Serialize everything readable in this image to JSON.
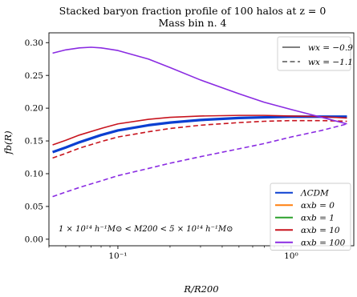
{
  "chart_data": {
    "type": "line",
    "title": "Stacked baryon fraction profile of 100 halos at z = 0",
    "subtitle": "Mass bin n. 4",
    "xlabel": "R/R200",
    "ylabel": "fb(R)",
    "xscale": "log",
    "xlim": [
      0.04,
      2.3
    ],
    "ylim": [
      -0.01,
      0.315
    ],
    "x_ticks": [
      {
        "value": 0.1,
        "label": "10⁻¹"
      },
      {
        "value": 1,
        "label": "10⁰"
      }
    ],
    "y_ticks": [
      {
        "value": 0.0,
        "label": "0.00"
      },
      {
        "value": 0.05,
        "label": "0.05"
      },
      {
        "value": 0.1,
        "label": "0.10"
      },
      {
        "value": 0.15,
        "label": "0.15"
      },
      {
        "value": 0.2,
        "label": "0.20"
      },
      {
        "value": 0.25,
        "label": "0.25"
      },
      {
        "value": 0.3,
        "label": "0.30"
      }
    ],
    "grid": false,
    "annotation": "1 × 10¹⁴ h⁻¹M⊙ < M200 < 5 × 10¹⁴ h⁻¹M⊙",
    "legend_linestyle": {
      "placement": "top-right",
      "entries": [
        {
          "label": "wx = −0.9",
          "dash": "solid"
        },
        {
          "label": "wx = −1.1",
          "dash": "dashed"
        }
      ]
    },
    "legend_models": {
      "placement": "lower-right",
      "entries": [
        {
          "label": "ΛCDM",
          "color": "#0a3fd1"
        },
        {
          "label": "αxb = 0",
          "color": "#ff7f0e"
        },
        {
          "label": "αxb = 1",
          "color": "#2ca02c"
        },
        {
          "label": "αxb = 10",
          "color": "#c8141e"
        },
        {
          "label": "αxb = 100",
          "color": "#8a2be2"
        }
      ]
    },
    "series": [
      {
        "name": "ΛCDM",
        "color": "#0a3fd1",
        "dash": "solid",
        "width": 3.2,
        "x": [
          0.042,
          0.05,
          0.06,
          0.08,
          0.1,
          0.15,
          0.2,
          0.3,
          0.5,
          0.7,
          1.0,
          1.5,
          2.1
        ],
        "y": [
          0.133,
          0.14,
          0.148,
          0.159,
          0.166,
          0.174,
          0.178,
          0.182,
          0.185,
          0.186,
          0.187,
          0.187,
          0.187
        ]
      },
      {
        "name": "αxb = 10",
        "color": "#c8141e",
        "dash": "solid",
        "width": 1.6,
        "x": [
          0.042,
          0.05,
          0.06,
          0.08,
          0.1,
          0.15,
          0.2,
          0.3,
          0.5,
          0.7,
          1.0,
          1.5,
          2.1
        ],
        "y": [
          0.144,
          0.151,
          0.159,
          0.169,
          0.176,
          0.183,
          0.186,
          0.188,
          0.189,
          0.189,
          0.188,
          0.187,
          0.185
        ]
      },
      {
        "name": "αxb = 10",
        "color": "#c8141e",
        "dash": "dashed",
        "width": 1.6,
        "x": [
          0.042,
          0.05,
          0.06,
          0.08,
          0.1,
          0.15,
          0.2,
          0.3,
          0.5,
          0.7,
          1.0,
          1.5,
          2.1
        ],
        "y": [
          0.124,
          0.131,
          0.139,
          0.149,
          0.156,
          0.164,
          0.169,
          0.174,
          0.178,
          0.18,
          0.181,
          0.181,
          0.18
        ]
      },
      {
        "name": "αxb = 100",
        "color": "#8a2be2",
        "dash": "solid",
        "width": 1.6,
        "x": [
          0.042,
          0.05,
          0.06,
          0.07,
          0.08,
          0.1,
          0.15,
          0.2,
          0.3,
          0.5,
          0.7,
          1.0,
          1.5,
          2.1
        ],
        "y": [
          0.284,
          0.289,
          0.292,
          0.293,
          0.292,
          0.288,
          0.275,
          0.262,
          0.243,
          0.222,
          0.209,
          0.198,
          0.186,
          0.176
        ]
      },
      {
        "name": "αxb = 100",
        "color": "#8a2be2",
        "dash": "dashed",
        "width": 1.6,
        "x": [
          0.042,
          0.05,
          0.06,
          0.08,
          0.1,
          0.15,
          0.2,
          0.3,
          0.5,
          0.7,
          1.0,
          1.5,
          2.1
        ],
        "y": [
          0.065,
          0.072,
          0.079,
          0.089,
          0.097,
          0.108,
          0.116,
          0.126,
          0.138,
          0.146,
          0.156,
          0.166,
          0.176
        ]
      }
    ]
  }
}
